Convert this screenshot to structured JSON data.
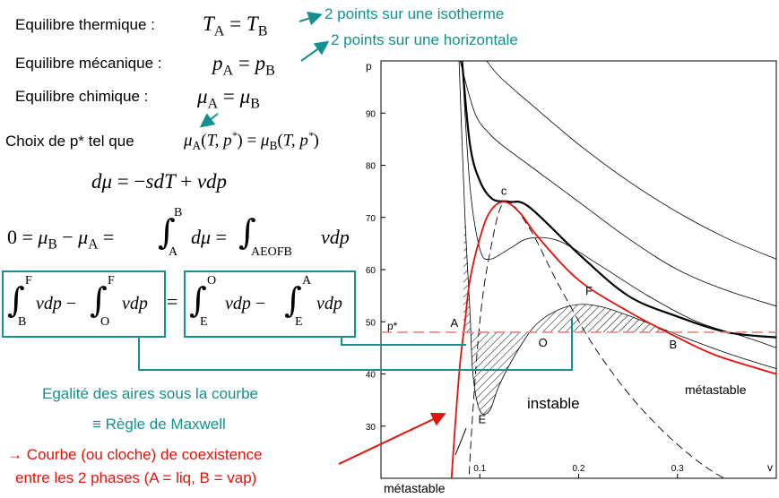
{
  "left": {
    "eq_thermique_label": "Equilibre thermique :",
    "eq_thermique_math": "T_A = T_B",
    "eq_mecanique_label": "Equilibre mécanique :",
    "eq_mecanique_math": "p_A = p_B",
    "eq_chimique_label": "Equilibre chimique :",
    "eq_chimique_math": "μ_A = μ_B",
    "choix_label": "Choix de p* tel que",
    "choix_math": "μ_A(T, p*) = μ_B(T, p*)",
    "gibbs_duhem": "dμ = −sdT + vdp",
    "integral_eq": "0 = μ_B − μ_A = ∫_A^B dμ = ∫_AEOFB vdp",
    "box_left": "∫_B^F vdp − ∫_O^F vdp",
    "box_right": "∫_E^O vdp − ∫_E^A vdp",
    "egalite": "Egalité des aires sous la courbe",
    "maxwell": "≡ Règle de Maxwell",
    "coexistence_line1": "→ Courbe (ou cloche) de coexistence",
    "coexistence_line2": "entre les 2 phases (A = liq, B = vap)"
  },
  "annotations": {
    "isotherme": "2 points sur une isotherme",
    "horizontale": "2 points sur une horizontale"
  },
  "colors": {
    "teal": "#14918f",
    "red": "#e3120b",
    "red_dashed": "#e6867f"
  },
  "chart_data": {
    "type": "line",
    "title": "",
    "xlabel": "v",
    "ylabel": "p",
    "xlim": [
      0.0,
      0.4
    ],
    "ylim": [
      20,
      100
    ],
    "x_ticks": [
      "0.1",
      "0.2",
      "0.3"
    ],
    "y_ticks": [
      "30",
      "40",
      "50",
      "60",
      "70",
      "80",
      "90"
    ],
    "critical_isotherm": [
      [
        0.082,
        100
      ],
      [
        0.09,
        84
      ],
      [
        0.1,
        77
      ],
      [
        0.113,
        73.5
      ],
      [
        0.13,
        73
      ],
      [
        0.15,
        72
      ],
      [
        0.2,
        63
      ],
      [
        0.25,
        55
      ],
      [
        0.3,
        51
      ],
      [
        0.35,
        48
      ],
      [
        0.4,
        47
      ]
    ],
    "isotherm_above_2": [
      [
        0.08,
        100
      ],
      [
        0.095,
        90
      ],
      [
        0.11,
        86
      ],
      [
        0.125,
        83.5
      ],
      [
        0.15,
        80
      ],
      [
        0.2,
        73
      ],
      [
        0.25,
        66
      ],
      [
        0.3,
        60
      ],
      [
        0.35,
        56
      ],
      [
        0.4,
        53
      ]
    ],
    "isotherm_above_3": [
      [
        0.107,
        100
      ],
      [
        0.12,
        97
      ],
      [
        0.15,
        92
      ],
      [
        0.2,
        84
      ],
      [
        0.25,
        77
      ],
      [
        0.3,
        71
      ],
      [
        0.35,
        66
      ],
      [
        0.4,
        62
      ]
    ],
    "isotherm_below_1": [
      [
        0.082,
        100
      ],
      [
        0.09,
        76
      ],
      [
        0.1,
        64
      ],
      [
        0.11,
        62
      ],
      [
        0.13,
        64
      ],
      [
        0.15,
        66
      ],
      [
        0.18,
        65.5
      ],
      [
        0.22,
        61
      ],
      [
        0.27,
        55
      ],
      [
        0.32,
        50
      ],
      [
        0.37,
        47
      ],
      [
        0.4,
        45
      ]
    ],
    "isotherm_below_2": [
      [
        0.079,
        100
      ],
      [
        0.085,
        70
      ],
      [
        0.09,
        52
      ],
      [
        0.093,
        40
      ],
      [
        0.1,
        33
      ],
      [
        0.11,
        33
      ],
      [
        0.12,
        38
      ],
      [
        0.14,
        45
      ],
      [
        0.16,
        50
      ],
      [
        0.19,
        53
      ],
      [
        0.22,
        53
      ],
      [
        0.26,
        50.5
      ],
      [
        0.3,
        47.5
      ],
      [
        0.35,
        44
      ],
      [
        0.4,
        41
      ]
    ],
    "coexistence_curve": [
      [
        0.07,
        16
      ],
      [
        0.075,
        30
      ],
      [
        0.08,
        42
      ],
      [
        0.085,
        50
      ],
      [
        0.09,
        58
      ],
      [
        0.1,
        66
      ],
      [
        0.11,
        71
      ],
      [
        0.124,
        73
      ],
      [
        0.14,
        71
      ],
      [
        0.16,
        66
      ],
      [
        0.2,
        58
      ],
      [
        0.25,
        52
      ],
      [
        0.3,
        47
      ],
      [
        0.34,
        43.5
      ],
      [
        0.4,
        40
      ]
    ],
    "spinodal_curve": [
      [
        0.088,
        16
      ],
      [
        0.092,
        30
      ],
      [
        0.1,
        50
      ],
      [
        0.11,
        63
      ],
      [
        0.125,
        73
      ],
      [
        0.15,
        68
      ],
      [
        0.18,
        57
      ],
      [
        0.22,
        44
      ],
      [
        0.27,
        32
      ],
      [
        0.33,
        22
      ],
      [
        0.4,
        15
      ]
    ],
    "p_star": 48,
    "points": [
      {
        "label": "A",
        "v": 0.083,
        "p": 48
      },
      {
        "label": "B",
        "v": 0.297,
        "p": 48
      },
      {
        "label": "c",
        "v": 0.125,
        "p": 73
      },
      {
        "label": "E",
        "v": 0.093,
        "p": 33
      },
      {
        "label": "F",
        "v": 0.205,
        "p": 53.5
      },
      {
        "label": "O",
        "v": 0.152,
        "p": 48
      }
    ],
    "annotations": [
      "p*",
      "instable",
      "métastable",
      "métastable"
    ]
  }
}
